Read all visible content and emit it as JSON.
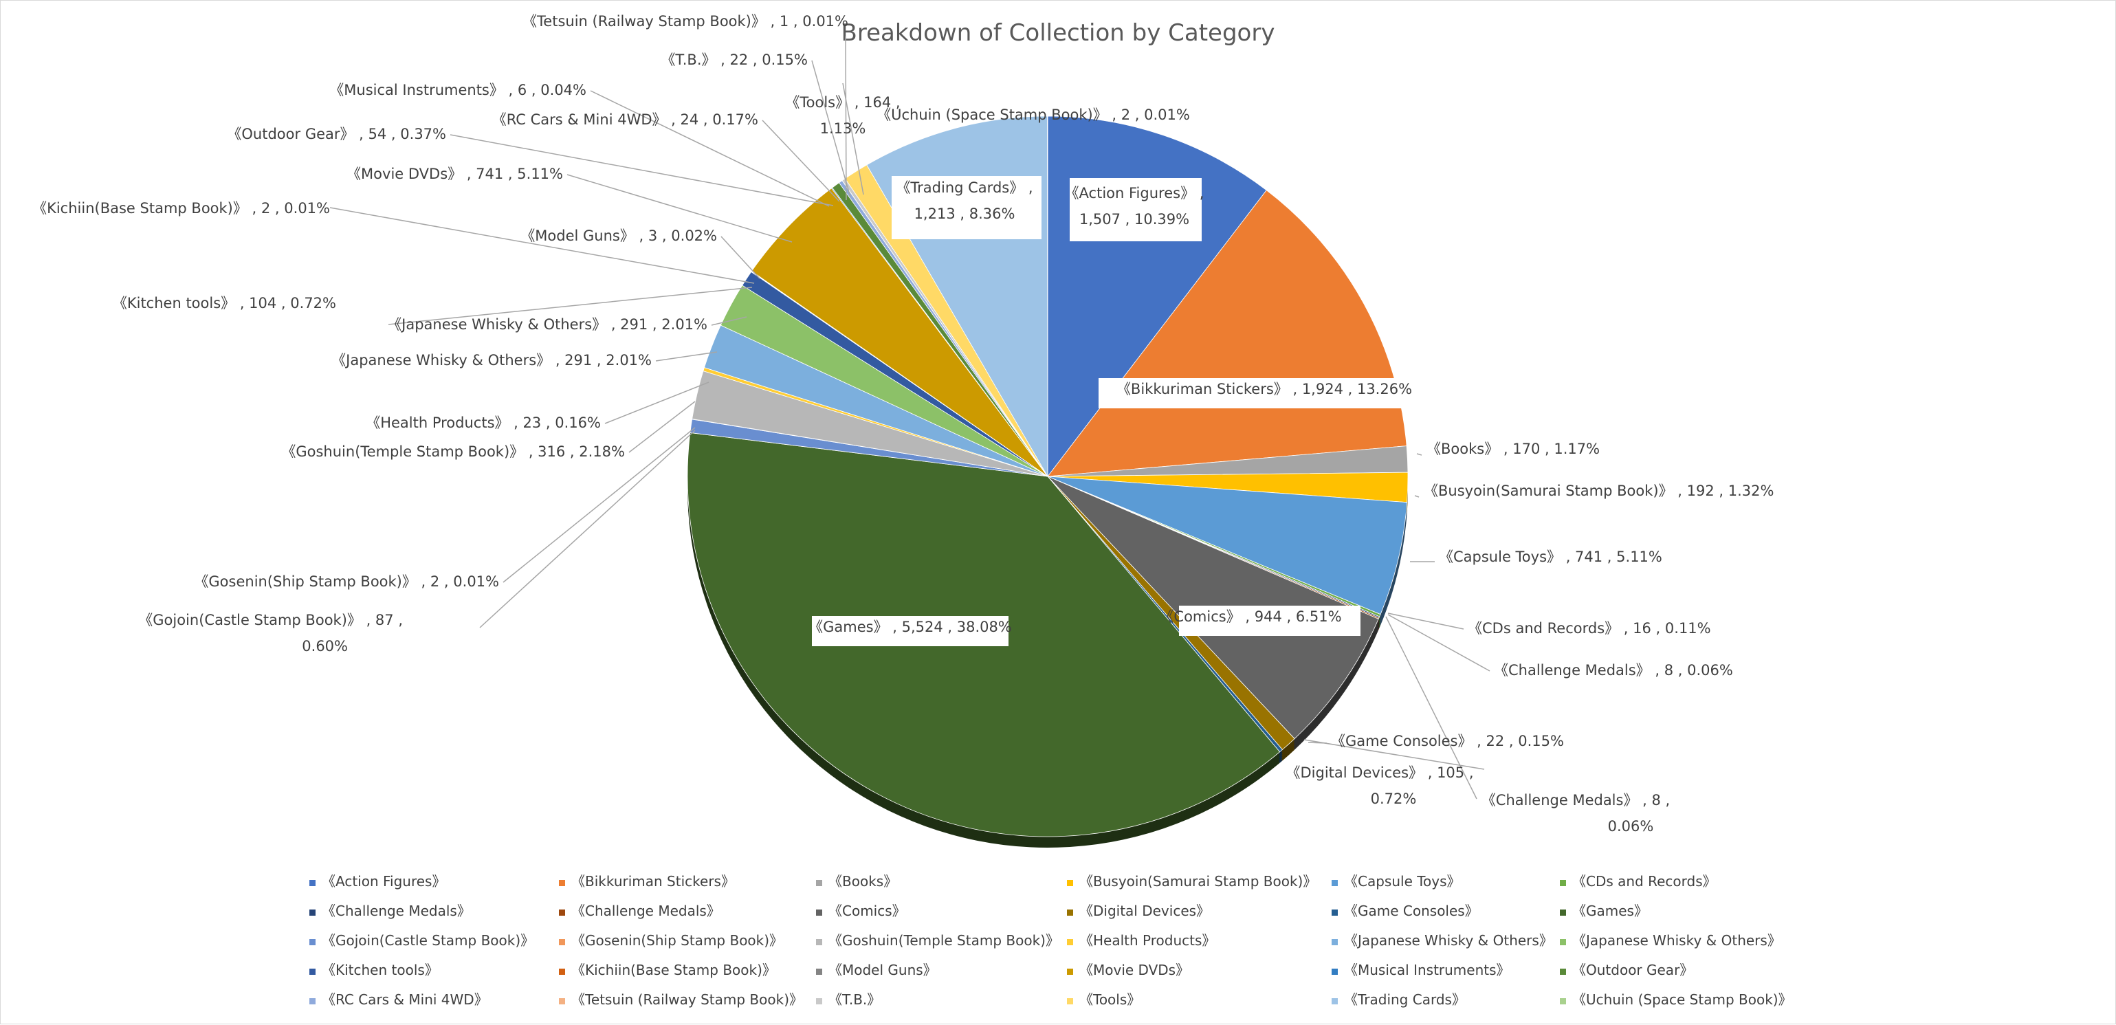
{
  "chart_data": {
    "type": "pie",
    "title": "Breakdown of Collection by Category",
    "colors": {
      "Action Figures": "#4472C4",
      "Bikkuriman Stickers": "#ED7D31",
      "Books": "#A5A5A5",
      "Busyoin(Samurai Stamp Book)": "#FFC000",
      "Capsule Toys": "#5B9BD5",
      "CDs and Records": "#70AD47",
      "Challenge Medals 1": "#264478",
      "Challenge Medals 2": "#9E480E",
      "Comics": "#636363",
      "Digital Devices": "#997300",
      "Game Consoles": "#255E91",
      "Games": "#43682B",
      "Gojoin(Castle Stamp Book)": "#698ED0",
      "Gosenin(Ship Stamp Book)": "#F1975A",
      "Goshuin(Temple Stamp Book)": "#B7B7B7",
      "Health Products": "#FFCD33",
      "Japanese Whisky & Others 1": "#7CAFDD",
      "Japanese Whisky & Others 2": "#8CC168",
      "Kitchen tools": "#335AA1",
      "Kichiin(Base Stamp Book)": "#D26012",
      "Model Guns": "#848484",
      "Movie DVDs": "#CC9A00",
      "Musical Instruments": "#327DC2",
      "Outdoor Gear": "#5A8A39",
      "RC Cars & Mini 4WD": "#8FAADC",
      "Tetsuin (Railway Stamp Book)": "#F4B183",
      "T.B.": "#C9C9C9",
      "Tools": "#FFD966",
      "Trading Cards": "#9DC3E6",
      "Uchuin (Space Stamp Book)": "#A9D18E"
    },
    "slices": [
      {
        "key": "Action Figures",
        "label": "《Action Figures》",
        "value": 1507,
        "value_text": "1,507",
        "percent": "10.39%"
      },
      {
        "key": "Bikkuriman Stickers",
        "label": "《Bikkuriman Stickers》",
        "value": 1924,
        "value_text": "1,924",
        "percent": "13.26%"
      },
      {
        "key": "Books",
        "label": "《Books》",
        "value": 170,
        "value_text": "170",
        "percent": "1.17%"
      },
      {
        "key": "Busyoin(Samurai Stamp Book)",
        "label": "《Busyoin(Samurai Stamp Book)》",
        "value": 192,
        "value_text": "192",
        "percent": "1.32%"
      },
      {
        "key": "Capsule Toys",
        "label": "《Capsule Toys》",
        "value": 741,
        "value_text": "741",
        "percent": "5.11%"
      },
      {
        "key": "CDs and Records",
        "label": "《CDs and Records》",
        "value": 16,
        "value_text": "16",
        "percent": "0.11%"
      },
      {
        "key": "Challenge Medals 1",
        "label": "《Challenge Medals》",
        "value": 8,
        "value_text": "8",
        "percent": "0.06%"
      },
      {
        "key": "Challenge Medals 2",
        "label": "《Challenge Medals》",
        "value": 8,
        "value_text": "8",
        "percent": "0.06%"
      },
      {
        "key": "Comics",
        "label": "《Comics》",
        "value": 944,
        "value_text": "944",
        "percent": "6.51%"
      },
      {
        "key": "Digital Devices",
        "label": "《Digital Devices》",
        "value": 105,
        "value_text": "105",
        "percent": "0.72%"
      },
      {
        "key": "Game Consoles",
        "label": "《Game Consoles》",
        "value": 22,
        "value_text": "22",
        "percent": "0.15%"
      },
      {
        "key": "Games",
        "label": "《Games》",
        "value": 5524,
        "value_text": "5,524",
        "percent": "38.08%"
      },
      {
        "key": "Gojoin(Castle Stamp Book)",
        "label": "《Gojoin(Castle Stamp Book)》",
        "value": 87,
        "value_text": "87",
        "percent": "0.60%"
      },
      {
        "key": "Gosenin(Ship Stamp Book)",
        "label": "《Gosenin(Ship Stamp Book)》",
        "value": 2,
        "value_text": "2",
        "percent": "0.01%"
      },
      {
        "key": "Goshuin(Temple Stamp Book)",
        "label": "《Goshuin(Temple Stamp Book)》",
        "value": 316,
        "value_text": "316",
        "percent": "2.18%"
      },
      {
        "key": "Health Products",
        "label": "《Health Products》",
        "value": 23,
        "value_text": "23",
        "percent": "0.16%"
      },
      {
        "key": "Japanese Whisky & Others 1",
        "label": "《Japanese Whisky & Others》",
        "value": 291,
        "value_text": "291",
        "percent": "2.01%"
      },
      {
        "key": "Japanese Whisky & Others 2",
        "label": "《Japanese Whisky & Others》",
        "value": 291,
        "value_text": "291",
        "percent": "2.01%"
      },
      {
        "key": "Kitchen tools",
        "label": "《Kitchen tools》",
        "value": 104,
        "value_text": "104",
        "percent": "0.72%"
      },
      {
        "key": "Kichiin(Base Stamp Book)",
        "label": "《Kichiin(Base Stamp Book)》",
        "value": 2,
        "value_text": "2",
        "percent": "0.01%"
      },
      {
        "key": "Model Guns",
        "label": "《Model Guns》",
        "value": 3,
        "value_text": "3",
        "percent": "0.02%"
      },
      {
        "key": "Movie DVDs",
        "label": "《Movie DVDs》",
        "value": 741,
        "value_text": "741",
        "percent": "5.11%"
      },
      {
        "key": "Musical Instruments",
        "label": "《Musical Instruments》",
        "value": 6,
        "value_text": "6",
        "percent": "0.04%"
      },
      {
        "key": "Outdoor Gear",
        "label": "《Outdoor Gear》",
        "value": 54,
        "value_text": "54",
        "percent": "0.37%"
      },
      {
        "key": "RC Cars & Mini 4WD",
        "label": "《RC Cars & Mini 4WD》",
        "value": 24,
        "value_text": "24",
        "percent": "0.17%"
      },
      {
        "key": "Tetsuin (Railway Stamp Book)",
        "label": "《Tetsuin (Railway Stamp Book)》",
        "value": 1,
        "value_text": "1",
        "percent": "0.01%"
      },
      {
        "key": "T.B.",
        "label": "《T.B.》",
        "value": 22,
        "value_text": "22",
        "percent": "0.15%"
      },
      {
        "key": "Tools",
        "label": "《Tools》",
        "value": 164,
        "value_text": "164",
        "percent": "1.13%"
      },
      {
        "key": "Trading Cards",
        "label": "《Trading Cards》",
        "value": 1213,
        "value_text": "1,213",
        "percent": "8.36%"
      },
      {
        "key": "Uchuin (Space Stamp Book)",
        "label": "《Uchuin (Space Stamp Book)》",
        "value": 2,
        "value_text": "2",
        "percent": "0.01%"
      }
    ],
    "legend_position": "bottom",
    "legend_labels": [
      "《Action Figures》",
      "《Bikkuriman Stickers》",
      "《Books》",
      "《Busyoin(Samurai Stamp Book)》",
      "《Capsule Toys》",
      "《CDs and Records》",
      "《Challenge Medals》",
      "《Challenge Medals》",
      "《Comics》",
      "《Digital Devices》",
      "《Game Consoles》",
      "《Games》",
      "《Gojoin(Castle Stamp Book)》",
      "《Gosenin(Ship Stamp Book)》",
      "《Goshuin(Temple Stamp Book)》",
      "《Health Products》",
      "《Japanese Whisky & Others》",
      "《Japanese Whisky & Others》",
      "《Kitchen tools》",
      "《Kichiin(Base Stamp Book)》",
      "《Model Guns》",
      "《Movie DVDs》",
      "《Musical Instruments》",
      "《Outdoor Gear》",
      "《RC Cars & Mini 4WD》",
      "《Tetsuin (Railway Stamp Book)》",
      "《T.B.》",
      "《Tools》",
      "《Trading Cards》",
      "《Uchuin (Space Stamp Book)》"
    ]
  }
}
